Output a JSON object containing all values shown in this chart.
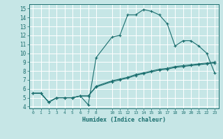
{
  "xlabel": "Humidex (Indice chaleur)",
  "xlim": [
    -0.5,
    23.5
  ],
  "ylim": [
    3.8,
    15.5
  ],
  "yticks": [
    4,
    5,
    6,
    7,
    8,
    9,
    10,
    11,
    12,
    13,
    14,
    15
  ],
  "xticks": [
    0,
    1,
    2,
    3,
    4,
    5,
    6,
    7,
    8,
    10,
    11,
    12,
    13,
    14,
    15,
    16,
    17,
    18,
    19,
    20,
    21,
    22,
    23
  ],
  "background_color": "#c6e6e6",
  "grid_color": "#ffffff",
  "line_color": "#1a6e6e",
  "line1_x": [
    0,
    1,
    2,
    3,
    4,
    5,
    6,
    7,
    8,
    10,
    11,
    12,
    13,
    14,
    15,
    16,
    17,
    18,
    19,
    20,
    21,
    22,
    23
  ],
  "line1_y": [
    5.5,
    5.5,
    4.5,
    5.0,
    5.0,
    5.0,
    5.2,
    4.2,
    9.5,
    11.8,
    12.0,
    14.3,
    14.3,
    14.9,
    14.7,
    14.3,
    13.3,
    10.8,
    11.4,
    11.4,
    10.8,
    10.0,
    7.8
  ],
  "line2_x": [
    0,
    1,
    2,
    3,
    4,
    5,
    6,
    7,
    8,
    10,
    11,
    12,
    13,
    14,
    15,
    16,
    17,
    18,
    19,
    20,
    21,
    22,
    23
  ],
  "line2_y": [
    5.5,
    5.5,
    4.5,
    5.0,
    5.0,
    5.0,
    5.2,
    5.2,
    6.2,
    6.8,
    7.0,
    7.2,
    7.5,
    7.7,
    7.9,
    8.1,
    8.2,
    8.4,
    8.5,
    8.6,
    8.7,
    8.8,
    8.9
  ],
  "line3_x": [
    0,
    1,
    2,
    3,
    4,
    5,
    6,
    7,
    8,
    10,
    11,
    12,
    13,
    14,
    15,
    16,
    17,
    18,
    19,
    20,
    21,
    22,
    23
  ],
  "line3_y": [
    5.5,
    5.5,
    4.5,
    5.0,
    5.0,
    5.0,
    5.2,
    5.2,
    6.3,
    6.9,
    7.1,
    7.3,
    7.6,
    7.8,
    8.0,
    8.2,
    8.3,
    8.5,
    8.6,
    8.7,
    8.8,
    8.9,
    9.0
  ]
}
